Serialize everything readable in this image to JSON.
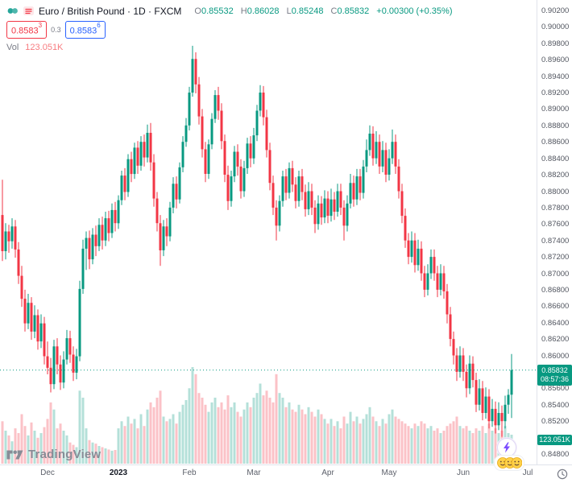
{
  "header": {
    "symbol_title": "Euro / British Pound · 1D · FXCM",
    "ohlc": {
      "o_label": "O",
      "o": "0.85532",
      "h_label": "H",
      "h": "0.86028",
      "l_label": "L",
      "l": "0.85248",
      "c_label": "C",
      "c": "0.85832",
      "change": "+0.00300 (+0.35%)"
    },
    "bid": {
      "value": "0.8583",
      "sup": "3"
    },
    "spread": "0.3",
    "ask": {
      "value": "0.8583",
      "sup": "6"
    },
    "vol_label": "Vol",
    "vol_value": "123.051K"
  },
  "axis_badges": {
    "price": "0.85832",
    "countdown": "08:57:36",
    "volume": "123.051K"
  },
  "footer": {
    "logo_text": "TradingView"
  },
  "colors": {
    "up": "#089981",
    "down": "#f23645",
    "vol_up": "rgba(8,153,129,0.30)",
    "vol_down": "rgba(242,54,69,0.30)",
    "accent_blue": "#2962ff",
    "badge_green": "#089981",
    "vol_value_color": "#f77c80"
  },
  "chart_data": {
    "type": "candlestick",
    "title": "Euro / British Pound",
    "interval": "1D",
    "exchange": "FXCM",
    "legend_note": "volume sub-series shown as pale bars at bottom",
    "y_axis": {
      "min": 0.848,
      "max": 0.902,
      "step": 0.002,
      "decimals": 5
    },
    "x_labels": [
      {
        "label": "Dec",
        "index": 14
      },
      {
        "label": "2023",
        "index": 36,
        "major": true
      },
      {
        "label": "Feb",
        "index": 58
      },
      {
        "label": "Mar",
        "index": 78
      },
      {
        "label": "Apr",
        "index": 101
      },
      {
        "label": "May",
        "index": 120
      },
      {
        "label": "Jun",
        "index": 143
      },
      {
        "label": "Jul",
        "index": 163
      }
    ],
    "last_price": 0.85832,
    "candles": [
      [
        0.8772,
        0.8815,
        0.8716,
        0.8728
      ],
      [
        0.8728,
        0.8762,
        0.8718,
        0.8752
      ],
      [
        0.8752,
        0.876,
        0.8726,
        0.874
      ],
      [
        0.874,
        0.8768,
        0.8731,
        0.8758
      ],
      [
        0.8758,
        0.8766,
        0.872,
        0.873
      ],
      [
        0.873,
        0.8739,
        0.8688,
        0.8698
      ],
      [
        0.8698,
        0.871,
        0.866,
        0.867
      ],
      [
        0.867,
        0.8681,
        0.863,
        0.864
      ],
      [
        0.864,
        0.8676,
        0.8633,
        0.8665
      ],
      [
        0.8665,
        0.8672,
        0.862,
        0.863
      ],
      [
        0.863,
        0.8662,
        0.8622,
        0.865
      ],
      [
        0.865,
        0.8657,
        0.8608,
        0.8618
      ],
      [
        0.8618,
        0.8651,
        0.861,
        0.864
      ],
      [
        0.864,
        0.8648,
        0.859,
        0.86
      ],
      [
        0.86,
        0.8618,
        0.8578,
        0.8586
      ],
      [
        0.8586,
        0.8598,
        0.8556,
        0.8566
      ],
      [
        0.8566,
        0.862,
        0.856,
        0.8612
      ],
      [
        0.8612,
        0.8622,
        0.8578,
        0.859
      ],
      [
        0.859,
        0.8601,
        0.8559,
        0.8568
      ],
      [
        0.8568,
        0.8606,
        0.8561,
        0.8596
      ],
      [
        0.8596,
        0.8632,
        0.859,
        0.8622
      ],
      [
        0.8622,
        0.8631,
        0.8592,
        0.8602
      ],
      [
        0.8602,
        0.8612,
        0.857,
        0.858
      ],
      [
        0.858,
        0.8609,
        0.8572,
        0.86
      ],
      [
        0.86,
        0.8692,
        0.8594,
        0.8682
      ],
      [
        0.8682,
        0.8742,
        0.8676,
        0.8731
      ],
      [
        0.8731,
        0.8752,
        0.8705,
        0.8744
      ],
      [
        0.8744,
        0.8753,
        0.8706,
        0.8718
      ],
      [
        0.8718,
        0.8756,
        0.8712,
        0.8748
      ],
      [
        0.8748,
        0.8759,
        0.8722,
        0.8734
      ],
      [
        0.8734,
        0.8768,
        0.8728,
        0.876
      ],
      [
        0.876,
        0.877,
        0.873,
        0.8741
      ],
      [
        0.8741,
        0.8776,
        0.8734,
        0.8768
      ],
      [
        0.8768,
        0.8777,
        0.874,
        0.875
      ],
      [
        0.875,
        0.8786,
        0.8744,
        0.8778
      ],
      [
        0.8778,
        0.8788,
        0.8752,
        0.8762
      ],
      [
        0.8762,
        0.8796,
        0.8755,
        0.879
      ],
      [
        0.879,
        0.8826,
        0.8784,
        0.882
      ],
      [
        0.882,
        0.8829,
        0.879,
        0.88
      ],
      [
        0.88,
        0.8846,
        0.8794,
        0.884
      ],
      [
        0.884,
        0.8849,
        0.8812,
        0.8822
      ],
      [
        0.8822,
        0.886,
        0.8816,
        0.8854
      ],
      [
        0.8854,
        0.8862,
        0.8822,
        0.8832
      ],
      [
        0.8832,
        0.8868,
        0.8826,
        0.8861
      ],
      [
        0.8861,
        0.887,
        0.8831,
        0.8842
      ],
      [
        0.8842,
        0.8882,
        0.8836,
        0.8872
      ],
      [
        0.8872,
        0.8884,
        0.8826,
        0.8836
      ],
      [
        0.8836,
        0.8846,
        0.8782,
        0.8792
      ],
      [
        0.8792,
        0.88,
        0.8752,
        0.8762
      ],
      [
        0.8762,
        0.8772,
        0.871,
        0.8729
      ],
      [
        0.8729,
        0.8766,
        0.8722,
        0.8758
      ],
      [
        0.8758,
        0.8768,
        0.8734,
        0.8746
      ],
      [
        0.8746,
        0.8788,
        0.874,
        0.8781
      ],
      [
        0.8781,
        0.8818,
        0.8774,
        0.881
      ],
      [
        0.881,
        0.8819,
        0.878,
        0.8791
      ],
      [
        0.8791,
        0.8836,
        0.8786,
        0.883
      ],
      [
        0.883,
        0.8868,
        0.8824,
        0.8861
      ],
      [
        0.8861,
        0.889,
        0.8855,
        0.8881
      ],
      [
        0.8881,
        0.8928,
        0.8875,
        0.8921
      ],
      [
        0.8921,
        0.8978,
        0.8916,
        0.8962
      ],
      [
        0.8962,
        0.897,
        0.892,
        0.8931
      ],
      [
        0.8931,
        0.894,
        0.8882,
        0.8892
      ],
      [
        0.8892,
        0.8901,
        0.8842,
        0.8852
      ],
      [
        0.8852,
        0.8861,
        0.8812,
        0.8822
      ],
      [
        0.8822,
        0.8864,
        0.8816,
        0.8858
      ],
      [
        0.8858,
        0.8896,
        0.8852,
        0.8889
      ],
      [
        0.8889,
        0.8924,
        0.8884,
        0.8918
      ],
      [
        0.8918,
        0.8928,
        0.8888,
        0.8899
      ],
      [
        0.8899,
        0.8908,
        0.8852,
        0.8862
      ],
      [
        0.8862,
        0.887,
        0.8812,
        0.8821
      ],
      [
        0.8821,
        0.8832,
        0.8778,
        0.8789
      ],
      [
        0.8789,
        0.8826,
        0.8782,
        0.8819
      ],
      [
        0.8819,
        0.8856,
        0.8812,
        0.8849
      ],
      [
        0.8849,
        0.8858,
        0.882,
        0.8831
      ],
      [
        0.8831,
        0.884,
        0.8792,
        0.8801
      ],
      [
        0.8801,
        0.8838,
        0.8794,
        0.8829
      ],
      [
        0.8829,
        0.8866,
        0.8822,
        0.8859
      ],
      [
        0.8859,
        0.8868,
        0.883,
        0.8841
      ],
      [
        0.8841,
        0.8878,
        0.8834,
        0.8869
      ],
      [
        0.8869,
        0.8906,
        0.8862,
        0.8899
      ],
      [
        0.8899,
        0.893,
        0.8892,
        0.8921
      ],
      [
        0.8921,
        0.8929,
        0.8881,
        0.8891
      ],
      [
        0.8891,
        0.89,
        0.8842,
        0.8851
      ],
      [
        0.8851,
        0.886,
        0.8802,
        0.8811
      ],
      [
        0.8811,
        0.882,
        0.8772,
        0.8781
      ],
      [
        0.8781,
        0.879,
        0.8741,
        0.8759
      ],
      [
        0.8759,
        0.8796,
        0.8752,
        0.8789
      ],
      [
        0.8789,
        0.8826,
        0.8782,
        0.8819
      ],
      [
        0.8819,
        0.8828,
        0.879,
        0.8799
      ],
      [
        0.8799,
        0.8836,
        0.8792,
        0.8829
      ],
      [
        0.8829,
        0.8838,
        0.88,
        0.8809
      ],
      [
        0.8809,
        0.8818,
        0.878,
        0.8789
      ],
      [
        0.8789,
        0.8826,
        0.8782,
        0.8819
      ],
      [
        0.8819,
        0.8828,
        0.879,
        0.88
      ],
      [
        0.88,
        0.8809,
        0.877,
        0.8779
      ],
      [
        0.8779,
        0.8812,
        0.8772,
        0.8801
      ],
      [
        0.8801,
        0.881,
        0.8772,
        0.8781
      ],
      [
        0.8781,
        0.879,
        0.875,
        0.8761
      ],
      [
        0.8761,
        0.8796,
        0.8754,
        0.8786
      ],
      [
        0.8786,
        0.8795,
        0.876,
        0.8769
      ],
      [
        0.8769,
        0.8802,
        0.8762,
        0.8792
      ],
      [
        0.8792,
        0.8801,
        0.8762,
        0.8771
      ],
      [
        0.8771,
        0.8804,
        0.8764,
        0.8791
      ],
      [
        0.8791,
        0.88,
        0.8766,
        0.8776
      ],
      [
        0.8776,
        0.881,
        0.877,
        0.8801
      ],
      [
        0.8801,
        0.881,
        0.8772,
        0.8781
      ],
      [
        0.8781,
        0.879,
        0.8741,
        0.8759
      ],
      [
        0.8759,
        0.8796,
        0.8752,
        0.8786
      ],
      [
        0.8786,
        0.8822,
        0.878,
        0.8811
      ],
      [
        0.8811,
        0.882,
        0.8782,
        0.8791
      ],
      [
        0.8791,
        0.8828,
        0.8784,
        0.8819
      ],
      [
        0.8819,
        0.8828,
        0.879,
        0.8799
      ],
      [
        0.8799,
        0.8839,
        0.8792,
        0.8831
      ],
      [
        0.8831,
        0.8864,
        0.8824,
        0.8851
      ],
      [
        0.8851,
        0.8881,
        0.8844,
        0.8871
      ],
      [
        0.8871,
        0.888,
        0.8832,
        0.8841
      ],
      [
        0.8841,
        0.8874,
        0.8834,
        0.8861
      ],
      [
        0.8861,
        0.887,
        0.8822,
        0.8831
      ],
      [
        0.8831,
        0.8862,
        0.8824,
        0.8851
      ],
      [
        0.8851,
        0.886,
        0.8812,
        0.8821
      ],
      [
        0.8821,
        0.8852,
        0.8814,
        0.8841
      ],
      [
        0.8841,
        0.8876,
        0.8834,
        0.8861
      ],
      [
        0.8861,
        0.887,
        0.8822,
        0.8831
      ],
      [
        0.8831,
        0.884,
        0.8792,
        0.8801
      ],
      [
        0.8801,
        0.881,
        0.8762,
        0.8771
      ],
      [
        0.8771,
        0.878,
        0.8732,
        0.8741
      ],
      [
        0.8741,
        0.875,
        0.8712,
        0.8721
      ],
      [
        0.8721,
        0.8752,
        0.8714,
        0.8741
      ],
      [
        0.8741,
        0.875,
        0.8702,
        0.8711
      ],
      [
        0.8711,
        0.8742,
        0.8704,
        0.8731
      ],
      [
        0.8731,
        0.874,
        0.8692,
        0.8701
      ],
      [
        0.8701,
        0.871,
        0.8672,
        0.8681
      ],
      [
        0.8681,
        0.8712,
        0.8674,
        0.8701
      ],
      [
        0.8701,
        0.873,
        0.8694,
        0.8721
      ],
      [
        0.8721,
        0.873,
        0.8692,
        0.8701
      ],
      [
        0.8701,
        0.871,
        0.8672,
        0.8681
      ],
      [
        0.8681,
        0.8712,
        0.8674,
        0.8701
      ],
      [
        0.8701,
        0.871,
        0.867,
        0.8679
      ],
      [
        0.8679,
        0.8688,
        0.864,
        0.8651
      ],
      [
        0.8651,
        0.866,
        0.8612,
        0.8621
      ],
      [
        0.8621,
        0.863,
        0.859,
        0.8601
      ],
      [
        0.8601,
        0.861,
        0.857,
        0.8581
      ],
      [
        0.8581,
        0.8612,
        0.8574,
        0.8601
      ],
      [
        0.8601,
        0.861,
        0.857,
        0.8581
      ],
      [
        0.8581,
        0.859,
        0.855,
        0.8561
      ],
      [
        0.8561,
        0.8601,
        0.8554,
        0.8591
      ],
      [
        0.8591,
        0.86,
        0.8562,
        0.8571
      ],
      [
        0.8571,
        0.858,
        0.8532,
        0.8541
      ],
      [
        0.8541,
        0.8572,
        0.8534,
        0.8561
      ],
      [
        0.8561,
        0.857,
        0.8522,
        0.8531
      ],
      [
        0.8531,
        0.8562,
        0.8524,
        0.8551
      ],
      [
        0.8551,
        0.856,
        0.8512,
        0.8521
      ],
      [
        0.8521,
        0.8548,
        0.8514,
        0.8536
      ],
      [
        0.8536,
        0.8545,
        0.8506,
        0.8516
      ],
      [
        0.8516,
        0.8544,
        0.851,
        0.8531
      ],
      [
        0.8531,
        0.854,
        0.8502,
        0.8521
      ],
      [
        0.8521,
        0.8552,
        0.8512,
        0.8541
      ],
      [
        0.8541,
        0.856,
        0.853,
        0.8553
      ],
      [
        0.85532,
        0.86028,
        0.85248,
        0.85832
      ]
    ],
    "volumes_k": [
      180,
      140,
      120,
      95,
      150,
      130,
      210,
      160,
      120,
      175,
      140,
      110,
      130,
      155,
      190,
      260,
      230,
      150,
      170,
      140,
      120,
      90,
      80,
      70,
      310,
      280,
      150,
      100,
      90,
      85,
      75,
      70,
      65,
      60,
      55,
      58,
      150,
      180,
      160,
      200,
      170,
      190,
      150,
      210,
      160,
      230,
      260,
      240,
      280,
      310,
      200,
      180,
      190,
      210,
      170,
      220,
      250,
      270,
      320,
      410,
      380,
      300,
      280,
      250,
      220,
      260,
      280,
      240,
      260,
      230,
      290,
      240,
      260,
      220,
      200,
      230,
      260,
      240,
      280,
      300,
      340,
      290,
      310,
      280,
      260,
      380,
      300,
      280,
      240,
      260,
      230,
      220,
      250,
      230,
      210,
      240,
      220,
      200,
      230,
      210,
      190,
      170,
      190,
      160,
      180,
      150,
      200,
      170,
      220,
      180,
      200,
      170,
      190,
      210,
      240,
      200,
      180,
      160,
      190,
      170,
      210,
      230,
      200,
      190,
      180,
      170,
      160,
      150,
      170,
      160,
      180,
      170,
      150,
      160,
      140,
      150,
      130,
      140,
      160,
      170,
      180,
      200,
      160,
      150,
      160,
      140,
      130,
      150,
      140,
      160,
      130,
      170,
      140,
      150,
      130,
      140,
      160,
      130,
      123.051
    ]
  }
}
